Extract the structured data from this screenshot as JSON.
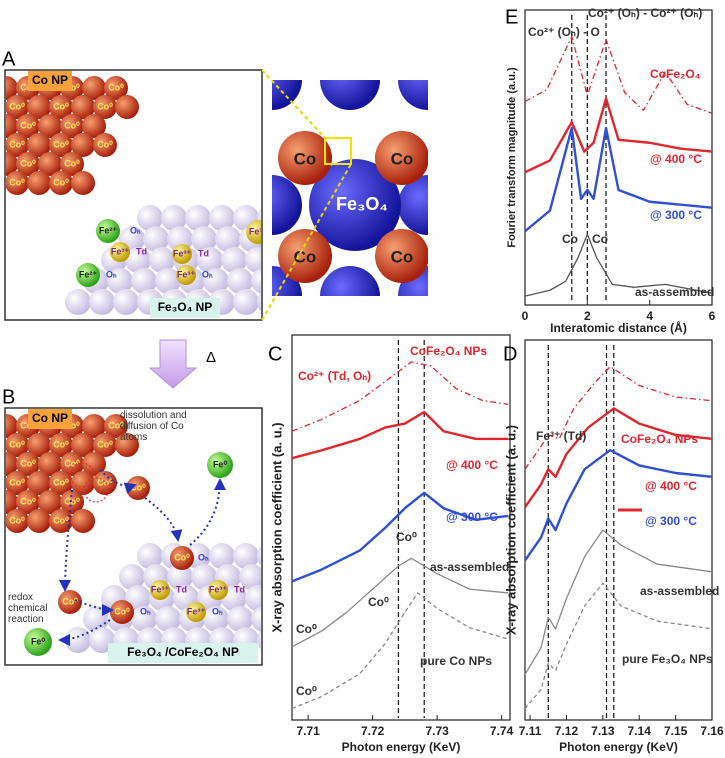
{
  "panel_labels": [
    "A",
    "B",
    "C",
    "D",
    "E"
  ],
  "diagram_a": {
    "co_np": "Co NP",
    "co0": "Co⁰",
    "fe2": "Fe²⁺",
    "oh": "Oₕ",
    "fe3": "Fe³⁺",
    "td": "Td",
    "np": "Fe₃O₄ NP"
  },
  "zoom": {
    "co": "Co",
    "fe3o4": "Fe₃O₄"
  },
  "heating": "Δ",
  "diagram_b": {
    "co_np": "Co NP",
    "dissolution": "dissolution and diffusion of Co atoms",
    "fe0": "Fe⁰",
    "co0": "Co⁰",
    "redox": "redox chemical reaction",
    "oh": "Oₕ",
    "fe3": "Fe³⁺",
    "td": "Td",
    "np": "Fe₃O₄ /CoFe₂O₄ NP"
  },
  "chart_data": [
    {
      "type": "line",
      "xlabel": "Photon energy (KeV)",
      "ylabel": "X-ray absorption coefficient (a. u.)",
      "xlim": [
        7.7075,
        7.7413
      ],
      "xticks": [
        7.71,
        7.72,
        7.73,
        7.74
      ],
      "ylim": [
        0,
        10
      ],
      "vlines": [
        7.724,
        7.728
      ],
      "annotations": [
        "Co²⁺ (Td, Oₕ)",
        "Co⁰"
      ],
      "series": [
        {
          "name": "CoFe₂O₄ NPs",
          "color": "#e0262a",
          "style": "dashdot",
          "x": [
            7.7075,
            7.712,
            7.718,
            7.722,
            7.726,
            7.729,
            7.733,
            7.737,
            7.741
          ],
          "values": [
            7.5,
            7.8,
            8.3,
            8.8,
            9.3,
            9.2,
            8.6,
            8.3,
            8.2
          ]
        },
        {
          "name": "@ 400 °C",
          "color": "#e0262a",
          "style": "solid",
          "x": [
            7.7075,
            7.712,
            7.718,
            7.722,
            7.725,
            7.728,
            7.731,
            7.736,
            7.741
          ],
          "values": [
            6.8,
            7.0,
            7.3,
            7.6,
            7.7,
            8.0,
            7.5,
            7.3,
            7.3
          ]
        },
        {
          "name": "@ 300 °C",
          "color": "#2f4fd6",
          "style": "solid",
          "x": [
            7.7075,
            7.712,
            7.718,
            7.722,
            7.725,
            7.728,
            7.731,
            7.736,
            7.741
          ],
          "values": [
            3.6,
            3.9,
            4.4,
            5.0,
            5.5,
            5.9,
            5.5,
            5.2,
            5.3
          ]
        },
        {
          "name": "as-assembled",
          "color": "#888888",
          "style": "solid",
          "x": [
            7.7075,
            7.712,
            7.716,
            7.72,
            7.724,
            7.726,
            7.73,
            7.735,
            7.741
          ],
          "values": [
            1.9,
            2.3,
            2.8,
            3.4,
            4.0,
            4.2,
            3.8,
            3.4,
            3.3
          ]
        },
        {
          "name": "pure Co NPs",
          "color": "#888888",
          "style": "dashed",
          "x": [
            7.7075,
            7.712,
            7.718,
            7.722,
            7.725,
            7.727,
            7.73,
            7.735,
            7.741
          ],
          "values": [
            0.3,
            0.6,
            1.2,
            2.0,
            2.8,
            3.3,
            2.9,
            2.4,
            2.1
          ]
        }
      ]
    },
    {
      "type": "line",
      "xlabel": "Photon energy (KeV)",
      "ylabel": "X-ray absorption coefficient (a. u.)",
      "xlim": [
        7.1086,
        7.16
      ],
      "xticks": [
        7.11,
        7.12,
        7.13,
        7.14,
        7.15,
        7.16
      ],
      "ylim": [
        0,
        10
      ],
      "vlines": [
        7.115,
        7.133,
        7.131
      ],
      "annotations": [
        "Fe³⁺ (Td)"
      ],
      "series": [
        {
          "name": "CoFe₂O₄ NPs",
          "color": "#e0262a",
          "style": "dashdot",
          "x": [
            7.1086,
            7.113,
            7.115,
            7.118,
            7.122,
            7.128,
            7.132,
            7.14,
            7.15,
            7.16
          ],
          "values": [
            6.6,
            7.2,
            7.5,
            7.4,
            8.2,
            8.9,
            9.3,
            8.8,
            8.5,
            8.4
          ]
        },
        {
          "name": "@ 400 °C",
          "color": "#e0262a",
          "style": "solid",
          "x": [
            7.1086,
            7.113,
            7.115,
            7.117,
            7.12,
            7.126,
            7.133,
            7.14,
            7.15,
            7.16
          ],
          "values": [
            5.6,
            6.2,
            6.6,
            6.4,
            7.0,
            7.7,
            8.2,
            7.8,
            7.5,
            7.4
          ]
        },
        {
          "name": "@ 300 °C",
          "color": "#2f4fd6",
          "style": "solid",
          "x": [
            7.1086,
            7.113,
            7.115,
            7.117,
            7.12,
            7.125,
            7.132,
            7.14,
            7.15,
            7.16
          ],
          "values": [
            4.2,
            4.8,
            5.3,
            5.0,
            5.7,
            6.6,
            7.1,
            6.7,
            6.5,
            6.4
          ]
        },
        {
          "name": "as-assembled",
          "color": "#888888",
          "style": "solid",
          "x": [
            7.1086,
            7.113,
            7.115,
            7.117,
            7.12,
            7.125,
            7.13,
            7.135,
            7.145,
            7.16
          ],
          "values": [
            1.2,
            1.9,
            2.7,
            2.4,
            3.2,
            4.3,
            5.0,
            4.6,
            4.1,
            3.9
          ]
        },
        {
          "name": "pure Fe₃O₄ NPs",
          "color": "#888888",
          "style": "dashed",
          "x": [
            7.1086,
            7.113,
            7.115,
            7.117,
            7.12,
            7.125,
            7.13,
            7.135,
            7.145,
            7.16
          ],
          "values": [
            0.3,
            0.8,
            1.5,
            1.3,
            2.0,
            3.0,
            3.6,
            3.0,
            2.6,
            2.4
          ]
        }
      ]
    },
    {
      "type": "line",
      "xlabel": "Interatomic distance (Å)",
      "ylabel": "Fourier transform magnitude (a.u.)",
      "xlim": [
        0,
        6
      ],
      "xticks": [
        0,
        2,
        4,
        6
      ],
      "ylim": [
        0,
        10
      ],
      "vlines": [
        1.5,
        2.0,
        2.6
      ],
      "annotations": [
        "Co²⁺ (Oₕ) - O",
        "Co²⁺ (Oₕ) - Co²⁺ (Oₕ)",
        "Co"
      ],
      "series": [
        {
          "name": "CoFe₂O₄",
          "color": "#e0262a",
          "style": "dashdot",
          "x": [
            0,
            0.7,
            1.5,
            2.0,
            2.6,
            3.2,
            3.8,
            4.5,
            5.2,
            6
          ],
          "values": [
            6.9,
            7.3,
            9.1,
            7.1,
            9.0,
            7.2,
            6.6,
            7.9,
            6.8,
            6.5
          ]
        },
        {
          "name": "@ 400 °C",
          "color": "#e0262a",
          "style": "solid",
          "x": [
            0,
            0.8,
            1.5,
            1.9,
            2.2,
            2.6,
            3.0,
            4,
            5,
            6
          ],
          "values": [
            4.5,
            4.9,
            6.2,
            5.2,
            5.5,
            7.0,
            5.6,
            5.5,
            5.3,
            5.2
          ]
        },
        {
          "name": "@ 300 °C",
          "color": "#2f4fd6",
          "style": "solid",
          "x": [
            0,
            0.8,
            1.2,
            1.5,
            1.8,
            2.0,
            2.2,
            2.6,
            3.0,
            4,
            5,
            6
          ],
          "values": [
            2.5,
            3.2,
            4.8,
            6.0,
            3.6,
            3.9,
            3.6,
            6.0,
            3.9,
            3.5,
            3.4,
            3.3
          ]
        },
        {
          "name": "as-assembled",
          "color": "#555555",
          "style": "solid",
          "x": [
            0,
            0.8,
            1.3,
            1.7,
            2.0,
            2.3,
            2.8,
            3.5,
            4.5,
            6
          ],
          "values": [
            0.3,
            0.5,
            0.8,
            1.6,
            2.4,
            1.6,
            0.7,
            0.6,
            0.7,
            0.4
          ]
        }
      ]
    }
  ]
}
